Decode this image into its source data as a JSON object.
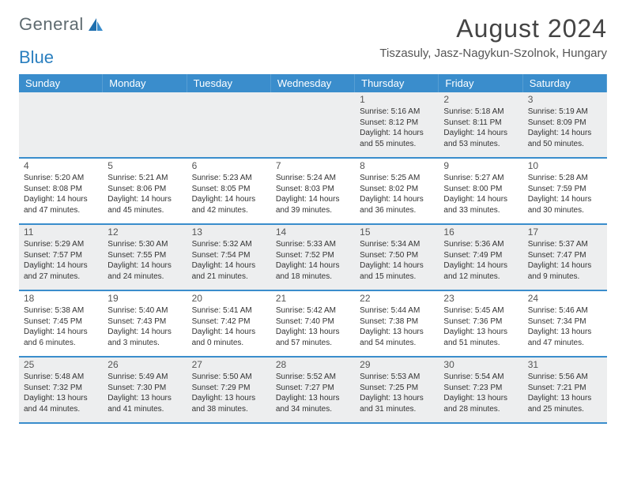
{
  "logo": {
    "text1": "General",
    "text2": "Blue"
  },
  "title": "August 2024",
  "location": "Tiszasuly, Jasz-Nagykun-Szolnok, Hungary",
  "colors": {
    "header_bg": "#3a8dcc",
    "header_text": "#ffffff",
    "row_border": "#3a8dcc",
    "shaded_bg": "#edeeef",
    "logo_gray": "#5f6b70",
    "logo_blue": "#2a7fbf"
  },
  "day_names": [
    "Sunday",
    "Monday",
    "Tuesday",
    "Wednesday",
    "Thursday",
    "Friday",
    "Saturday"
  ],
  "weeks": [
    [
      null,
      null,
      null,
      null,
      {
        "d": "1",
        "sr": "5:16 AM",
        "ss": "8:12 PM",
        "dl": "14 hours and 55 minutes."
      },
      {
        "d": "2",
        "sr": "5:18 AM",
        "ss": "8:11 PM",
        "dl": "14 hours and 53 minutes."
      },
      {
        "d": "3",
        "sr": "5:19 AM",
        "ss": "8:09 PM",
        "dl": "14 hours and 50 minutes."
      }
    ],
    [
      {
        "d": "4",
        "sr": "5:20 AM",
        "ss": "8:08 PM",
        "dl": "14 hours and 47 minutes."
      },
      {
        "d": "5",
        "sr": "5:21 AM",
        "ss": "8:06 PM",
        "dl": "14 hours and 45 minutes."
      },
      {
        "d": "6",
        "sr": "5:23 AM",
        "ss": "8:05 PM",
        "dl": "14 hours and 42 minutes."
      },
      {
        "d": "7",
        "sr": "5:24 AM",
        "ss": "8:03 PM",
        "dl": "14 hours and 39 minutes."
      },
      {
        "d": "8",
        "sr": "5:25 AM",
        "ss": "8:02 PM",
        "dl": "14 hours and 36 minutes."
      },
      {
        "d": "9",
        "sr": "5:27 AM",
        "ss": "8:00 PM",
        "dl": "14 hours and 33 minutes."
      },
      {
        "d": "10",
        "sr": "5:28 AM",
        "ss": "7:59 PM",
        "dl": "14 hours and 30 minutes."
      }
    ],
    [
      {
        "d": "11",
        "sr": "5:29 AM",
        "ss": "7:57 PM",
        "dl": "14 hours and 27 minutes."
      },
      {
        "d": "12",
        "sr": "5:30 AM",
        "ss": "7:55 PM",
        "dl": "14 hours and 24 minutes."
      },
      {
        "d": "13",
        "sr": "5:32 AM",
        "ss": "7:54 PM",
        "dl": "14 hours and 21 minutes."
      },
      {
        "d": "14",
        "sr": "5:33 AM",
        "ss": "7:52 PM",
        "dl": "14 hours and 18 minutes."
      },
      {
        "d": "15",
        "sr": "5:34 AM",
        "ss": "7:50 PM",
        "dl": "14 hours and 15 minutes."
      },
      {
        "d": "16",
        "sr": "5:36 AM",
        "ss": "7:49 PM",
        "dl": "14 hours and 12 minutes."
      },
      {
        "d": "17",
        "sr": "5:37 AM",
        "ss": "7:47 PM",
        "dl": "14 hours and 9 minutes."
      }
    ],
    [
      {
        "d": "18",
        "sr": "5:38 AM",
        "ss": "7:45 PM",
        "dl": "14 hours and 6 minutes."
      },
      {
        "d": "19",
        "sr": "5:40 AM",
        "ss": "7:43 PM",
        "dl": "14 hours and 3 minutes."
      },
      {
        "d": "20",
        "sr": "5:41 AM",
        "ss": "7:42 PM",
        "dl": "14 hours and 0 minutes."
      },
      {
        "d": "21",
        "sr": "5:42 AM",
        "ss": "7:40 PM",
        "dl": "13 hours and 57 minutes."
      },
      {
        "d": "22",
        "sr": "5:44 AM",
        "ss": "7:38 PM",
        "dl": "13 hours and 54 minutes."
      },
      {
        "d": "23",
        "sr": "5:45 AM",
        "ss": "7:36 PM",
        "dl": "13 hours and 51 minutes."
      },
      {
        "d": "24",
        "sr": "5:46 AM",
        "ss": "7:34 PM",
        "dl": "13 hours and 47 minutes."
      }
    ],
    [
      {
        "d": "25",
        "sr": "5:48 AM",
        "ss": "7:32 PM",
        "dl": "13 hours and 44 minutes."
      },
      {
        "d": "26",
        "sr": "5:49 AM",
        "ss": "7:30 PM",
        "dl": "13 hours and 41 minutes."
      },
      {
        "d": "27",
        "sr": "5:50 AM",
        "ss": "7:29 PM",
        "dl": "13 hours and 38 minutes."
      },
      {
        "d": "28",
        "sr": "5:52 AM",
        "ss": "7:27 PM",
        "dl": "13 hours and 34 minutes."
      },
      {
        "d": "29",
        "sr": "5:53 AM",
        "ss": "7:25 PM",
        "dl": "13 hours and 31 minutes."
      },
      {
        "d": "30",
        "sr": "5:54 AM",
        "ss": "7:23 PM",
        "dl": "13 hours and 28 minutes."
      },
      {
        "d": "31",
        "sr": "5:56 AM",
        "ss": "7:21 PM",
        "dl": "13 hours and 25 minutes."
      }
    ]
  ],
  "labels": {
    "sunrise": "Sunrise:",
    "sunset": "Sunset:",
    "daylight": "Daylight:"
  }
}
